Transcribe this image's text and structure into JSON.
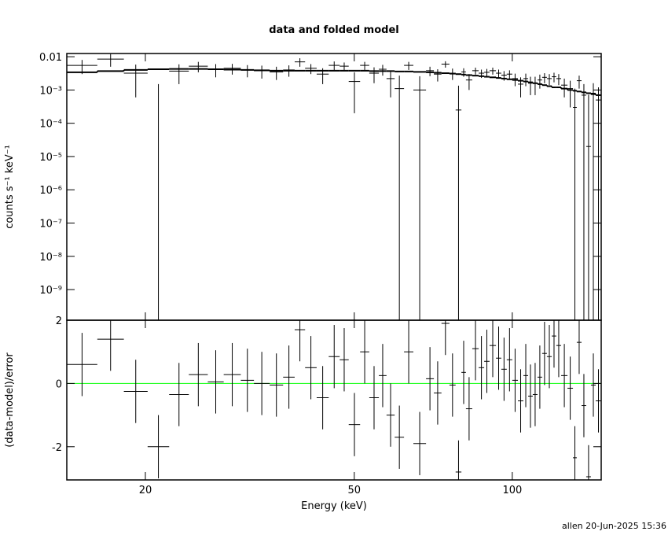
{
  "footer": "allen 20-Jun-2025 15:36",
  "chart_data": [
    {
      "type": "spectrum",
      "title": "data and folded model",
      "y_label": "counts s⁻¹ keV⁻¹",
      "log_x": true,
      "log_y": true,
      "xlim": [
        14.17,
        147.7
      ],
      "xticks": [
        20,
        50,
        100
      ],
      "ylim": [
        1.2e-10,
        0.0125
      ],
      "yticks": [
        0.01,
        {
          "value": 0.001,
          "label": "10⁻³"
        },
        {
          "value": 0.0001,
          "label": "10⁻⁴"
        },
        {
          "value": 1e-05,
          "label": "10⁻⁵"
        },
        {
          "value": 1e-06,
          "label": "10⁻⁶"
        },
        {
          "value": 1e-07,
          "label": "10⁻⁷"
        },
        {
          "value": 1e-08,
          "label": "10⁻⁸"
        },
        {
          "value": 1e-09,
          "label": "10⁻⁹"
        }
      ],
      "bins": [
        14.17,
        16.2,
        18.2,
        20.2,
        22.2,
        24.2,
        26.3,
        28.2,
        30.4,
        32.2,
        34.5,
        36.6,
        38.5,
        40.3,
        42.4,
        44.7,
        46.9,
        48.8,
        51.3,
        53.4,
        55.7,
        57.6,
        59.7,
        62.2,
        64.8,
        68.5,
        70.9,
        73.3,
        75.9,
        78.0,
        80.0,
        81.6,
        83.9,
        86.3,
        88.4,
        90.5,
        93.1,
        95.3,
        97.6,
        100.0,
        102.5,
        105.0,
        107.2,
        109.4,
        111.7,
        114.0,
        116.4,
        118.9,
        121.3,
        123.9,
        127.4,
        130.5,
        132.7,
        135.5,
        138.3,
        141.2,
        144.2,
        147.7
      ],
      "data": {
        "color": "#000000",
        "values": [
          0.0055,
          0.0085,
          0.0032,
          -0.0005,
          0.0037,
          0.0052,
          0.0042,
          0.0045,
          0.004,
          0.0038,
          0.0035,
          0.004,
          0.007,
          0.0045,
          0.003,
          0.0055,
          0.0052,
          0.0018,
          0.0055,
          0.0032,
          0.0042,
          0.0022,
          0.0011,
          0.0055,
          0.001,
          0.0038,
          0.003,
          0.006,
          0.0032,
          0.00025,
          0.0035,
          0.002,
          0.0038,
          0.0032,
          0.0034,
          0.0038,
          0.0032,
          0.0028,
          0.003,
          0.0022,
          0.0015,
          0.0022,
          0.0016,
          0.0016,
          0.002,
          0.0024,
          0.0022,
          0.0025,
          0.0022,
          0.0014,
          0.0011,
          0.0003,
          0.0019,
          0.0007,
          2e-05,
          0.0008,
          0.0005
        ],
        "errors": [
          0.0025,
          0.0035,
          0.0026,
          0.002,
          0.0022,
          0.0018,
          0.0018,
          0.0016,
          0.0016,
          0.0016,
          0.0015,
          0.0015,
          0.002,
          0.0015,
          0.0015,
          0.0017,
          0.0015,
          0.0016,
          0.0015,
          0.0016,
          0.0015,
          0.0016,
          0.0016,
          0.0015,
          0.0016,
          0.0012,
          0.0012,
          0.0013,
          0.0012,
          0.0011,
          0.001,
          0.001,
          0.0009,
          0.0009,
          0.0009,
          0.0009,
          0.0009,
          0.0009,
          0.0009,
          0.0009,
          0.0009,
          0.0009,
          0.0009,
          0.0009,
          0.0009,
          0.0008,
          0.0008,
          0.0008,
          0.0008,
          0.0008,
          0.0008,
          0.0008,
          0.0008,
          0.0008,
          0.0007,
          0.0008,
          0.0007
        ]
      },
      "model": {
        "color": "#000000",
        "values": [
          0.0034,
          0.0037,
          0.004,
          0.0042,
          0.0043,
          0.0043,
          0.0042,
          0.0041,
          0.004,
          0.0039,
          0.0038,
          0.0038,
          0.0038,
          0.0038,
          0.0038,
          0.0038,
          0.0038,
          0.0038,
          0.0038,
          0.0037,
          0.0037,
          0.0037,
          0.0036,
          0.0036,
          0.0035,
          0.0034,
          0.0033,
          0.0032,
          0.0031,
          0.003,
          0.0029,
          0.0028,
          0.0027,
          0.0026,
          0.0025,
          0.0024,
          0.0023,
          0.0022,
          0.0021,
          0.002,
          0.0019,
          0.0018,
          0.0017,
          0.0016,
          0.0015,
          0.0014,
          0.0013,
          0.0012,
          0.0012,
          0.0011,
          0.001,
          0.00095,
          0.0009,
          0.00085,
          0.0008,
          0.00075,
          0.0007
        ]
      }
    },
    {
      "type": "residual",
      "y_label": "(data-model)/error",
      "x_label": "Energy (keV)",
      "log_x": true,
      "xlim": [
        14.17,
        147.7
      ],
      "xticks": [
        20,
        50,
        100
      ],
      "ylim": [
        -3.05,
        2
      ],
      "yticks": [
        -2,
        0,
        2
      ],
      "zero_line": {
        "value": 0,
        "color": "#00ff00"
      },
      "bins": [
        14.17,
        16.2,
        18.2,
        20.2,
        22.2,
        24.2,
        26.3,
        28.2,
        30.4,
        32.2,
        34.5,
        36.6,
        38.5,
        40.3,
        42.4,
        44.7,
        46.9,
        48.8,
        51.3,
        53.4,
        55.7,
        57.6,
        59.7,
        62.2,
        64.8,
        68.5,
        70.9,
        73.3,
        75.9,
        78.0,
        80.0,
        81.6,
        83.9,
        86.3,
        88.4,
        90.5,
        93.1,
        95.3,
        97.6,
        100.0,
        102.5,
        105.0,
        107.2,
        109.4,
        111.7,
        114.0,
        116.4,
        118.9,
        121.3,
        123.9,
        127.4,
        130.5,
        132.7,
        135.5,
        138.3,
        141.2,
        144.2,
        147.7
      ],
      "data": {
        "color": "#000000",
        "values": [
          0.6,
          1.4,
          -0.25,
          -2.0,
          -0.35,
          0.28,
          0.05,
          0.28,
          0.1,
          0.0,
          -0.05,
          0.2,
          1.7,
          0.5,
          -0.45,
          0.85,
          0.75,
          -1.3,
          1.0,
          -0.45,
          0.25,
          -1.0,
          -1.7,
          1.0,
          -1.9,
          0.15,
          -0.3,
          1.9,
          -0.05,
          -2.8,
          0.35,
          -0.8,
          1.1,
          0.5,
          0.7,
          1.2,
          0.8,
          0.45,
          0.75,
          0.1,
          -0.55,
          0.25,
          -0.4,
          -0.35,
          0.2,
          0.95,
          0.85,
          1.5,
          1.2,
          0.25,
          -0.15,
          -2.35,
          1.3,
          -0.7,
          -2.95,
          -0.05,
          -0.55
        ],
        "errors": [
          1,
          1,
          1,
          1,
          1,
          1,
          1,
          1,
          1,
          1,
          1,
          1,
          1,
          1,
          1,
          1,
          1,
          1,
          1,
          1,
          1,
          1,
          1,
          1,
          1,
          1,
          1,
          1,
          1,
          1,
          1,
          1,
          1,
          1,
          1,
          1,
          1,
          1,
          1,
          1,
          1,
          1,
          1,
          1,
          1,
          1,
          1,
          1,
          1,
          1,
          1,
          1,
          1,
          1,
          1,
          1,
          1
        ]
      }
    }
  ]
}
